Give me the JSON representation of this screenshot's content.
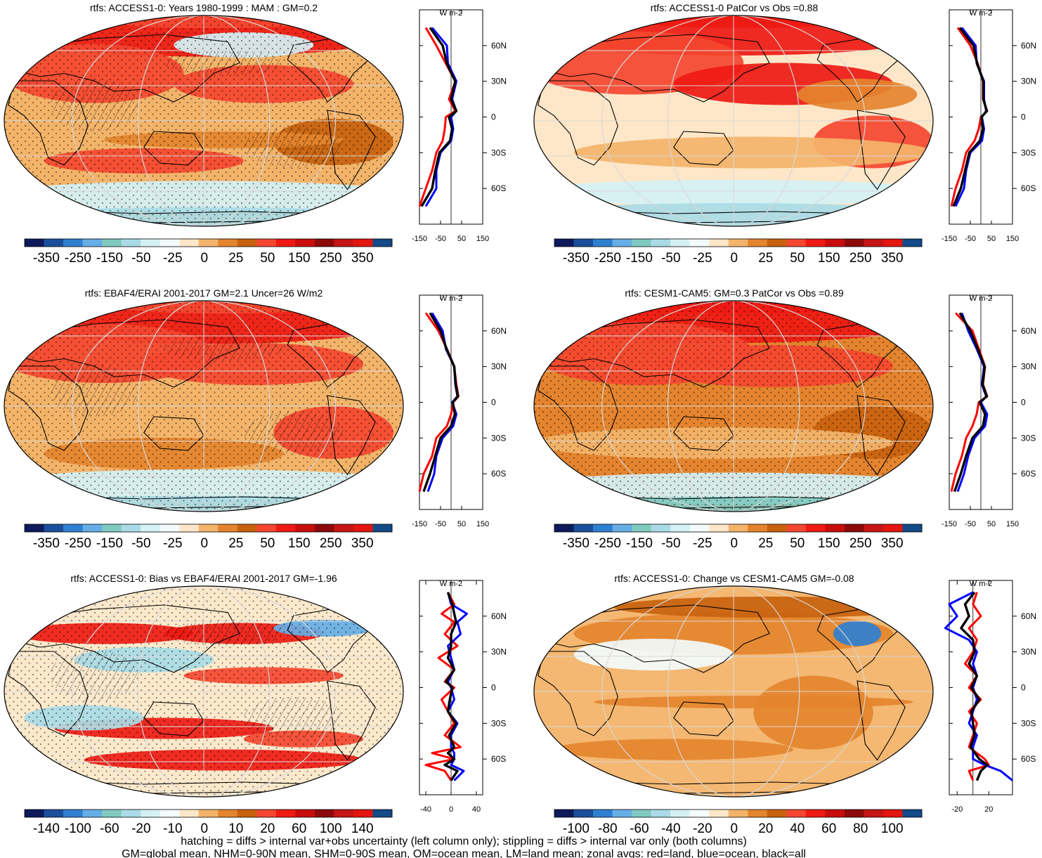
{
  "palette": [
    "#0e1a5c",
    "#1b4f9c",
    "#2f7fd0",
    "#66aee6",
    "#80c9c0",
    "#a9dbe6",
    "#d4f2f6",
    "#f3fbfd",
    "#fde7c8",
    "#f3b46a",
    "#e4842e",
    "#c8620e",
    "#f54730",
    "#ee1a13",
    "#c80d0d",
    "#8c0a0a",
    "#c61515",
    "#e2160f",
    "#134a87"
  ],
  "colors": {
    "land_zonal": "#ff0000",
    "ocean_zonal": "#0000ff",
    "all_zonal": "#000000",
    "coast": "#000000"
  },
  "footer": {
    "line1": "hatching = diffs > internal var+obs uncertainty (left column only); stippling = diffs > internal var only (both columns)",
    "line2": "GM=global mean, NHM=0-90N mean, SHM=0-90S mean, OM=ocean mean, LM=land mean; zonal avgs: red=land, blue=ocean, black=all"
  },
  "chart_data": [
    {
      "type": "heatmap",
      "title": "rtfs: ACCESS1-0: Years 1980-1999 : MAM : GM=0.2",
      "colorbar_labels": [
        "-350",
        "-250",
        "-150",
        "-50",
        "-25",
        "0",
        "25",
        "50",
        "150",
        "250",
        "350"
      ],
      "zonal": {
        "units": "W m-2",
        "xlim": [
          -150,
          150
        ],
        "xticks": [
          "-150",
          "-50",
          "50",
          "150"
        ],
        "ylim": [
          -90,
          90
        ],
        "yticks": [
          "60N",
          "30N",
          "0",
          "30S",
          "60S"
        ],
        "series": [
          {
            "key": "land",
            "lat": [
              75,
              60,
              45,
              30,
              15,
              5,
              0,
              -10,
              -20,
              -30,
              -45,
              -60,
              -75
            ],
            "values": [
              -120,
              -70,
              -25,
              20,
              -10,
              20,
              -25,
              -30,
              -40,
              -70,
              -90,
              -120,
              -150
            ]
          },
          {
            "key": "ocean",
            "lat": [
              75,
              60,
              45,
              30,
              15,
              5,
              0,
              -10,
              -20,
              -30,
              -45,
              -60,
              -75
            ],
            "values": [
              -90,
              -20,
              -15,
              25,
              5,
              25,
              0,
              10,
              0,
              -50,
              -70,
              -70,
              -120
            ]
          },
          {
            "key": "all",
            "lat": [
              75,
              60,
              45,
              30,
              15,
              5,
              0,
              -10,
              -20,
              -30,
              -45,
              -60,
              -75
            ],
            "values": [
              -100,
              -40,
              -20,
              20,
              0,
              25,
              -10,
              5,
              -5,
              -55,
              -75,
              -90,
              -140
            ]
          }
        ]
      }
    },
    {
      "type": "heatmap",
      "title": "rtfs: ACCESS1-0 PatCor vs Obs =0.88",
      "colorbar_labels": [
        "-350",
        "-250",
        "-150",
        "-50",
        "-25",
        "0",
        "25",
        "50",
        "150",
        "250",
        "350"
      ],
      "zonal": {
        "units": "W m-2",
        "xlim": [
          -150,
          150
        ],
        "xticks": [
          "-150",
          "-50",
          "50",
          "150"
        ],
        "ylim": [
          -90,
          90
        ],
        "yticks": [
          "60N",
          "30N",
          "0",
          "30S",
          "60S"
        ],
        "series": [
          {
            "key": "land",
            "lat": [
              75,
              60,
              45,
              30,
              15,
              5,
              0,
              -10,
              -20,
              -30,
              -45,
              -60,
              -75
            ],
            "values": [
              -110,
              -50,
              -15,
              10,
              10,
              30,
              0,
              -10,
              -30,
              -70,
              -90,
              -120,
              -140
            ]
          },
          {
            "key": "ocean",
            "lat": [
              75,
              60,
              45,
              30,
              15,
              5,
              0,
              -10,
              -20,
              -30,
              -45,
              -60,
              -75
            ],
            "values": [
              -90,
              -25,
              -20,
              15,
              15,
              25,
              5,
              15,
              5,
              -50,
              -70,
              -80,
              -120
            ]
          },
          {
            "key": "all",
            "lat": [
              75,
              60,
              45,
              30,
              15,
              5,
              0,
              -10,
              -20,
              -30,
              -45,
              -60,
              -75
            ],
            "values": [
              -100,
              -35,
              -18,
              12,
              12,
              28,
              3,
              10,
              -5,
              -55,
              -75,
              -95,
              -130
            ]
          }
        ]
      }
    },
    {
      "type": "heatmap",
      "title": "rtfs: EBAF4/ERAI 2001-2017 GM=2.1 Uncer=26 W/m2",
      "colorbar_labels": [
        "-350",
        "-250",
        "-150",
        "-50",
        "-25",
        "0",
        "25",
        "50",
        "150",
        "250",
        "350"
      ],
      "zonal": {
        "units": "W m-2",
        "xlim": [
          -150,
          150
        ],
        "xticks": [
          "-150",
          "-50",
          "50",
          "150"
        ],
        "ylim": [
          -90,
          90
        ],
        "yticks": [
          "60N",
          "30N",
          "0",
          "30S",
          "60S"
        ],
        "series": [
          {
            "key": "land",
            "lat": [
              75,
              60,
              45,
              30,
              15,
              5,
              0,
              -10,
              -20,
              -30,
              -45,
              -60,
              -75
            ],
            "values": [
              -120,
              -60,
              -20,
              15,
              25,
              35,
              10,
              0,
              -20,
              -70,
              -90,
              -130,
              -150
            ]
          },
          {
            "key": "ocean",
            "lat": [
              75,
              60,
              45,
              30,
              15,
              5,
              0,
              -10,
              -20,
              -30,
              -45,
              -60,
              -75
            ],
            "values": [
              -90,
              -40,
              -25,
              15,
              20,
              30,
              5,
              25,
              10,
              -40,
              -70,
              -80,
              -110
            ]
          },
          {
            "key": "all",
            "lat": [
              75,
              60,
              45,
              30,
              15,
              5,
              0,
              -10,
              -20,
              -30,
              -45,
              -60,
              -75
            ],
            "values": [
              -100,
              -50,
              -22,
              15,
              22,
              32,
              8,
              18,
              0,
              -50,
              -75,
              -100,
              -130
            ]
          }
        ]
      }
    },
    {
      "type": "heatmap",
      "title": "rtfs: CESM1-CAM5: GM=0.3 PatCor vs Obs =0.89",
      "colorbar_labels": [
        "-350",
        "-250",
        "-150",
        "-50",
        "-25",
        "0",
        "25",
        "50",
        "150",
        "250",
        "350"
      ],
      "zonal": {
        "units": "W m-2",
        "xlim": [
          -150,
          150
        ],
        "xticks": [
          "-150",
          "-50",
          "50",
          "150"
        ],
        "ylim": [
          -90,
          90
        ],
        "yticks": [
          "60N",
          "30N",
          "0",
          "30S",
          "60S"
        ],
        "series": [
          {
            "key": "land",
            "lat": [
              75,
              60,
              45,
              30,
              15,
              5,
              0,
              -10,
              -20,
              -30,
              -45,
              -60,
              -75
            ],
            "values": [
              -120,
              -40,
              -10,
              20,
              10,
              30,
              -10,
              -20,
              -40,
              -70,
              -90,
              -120,
              -140
            ]
          },
          {
            "key": "ocean",
            "lat": [
              75,
              60,
              45,
              30,
              15,
              5,
              0,
              -10,
              -20,
              -30,
              -45,
              -60,
              -75
            ],
            "values": [
              -90,
              -60,
              -20,
              15,
              5,
              25,
              0,
              30,
              20,
              -30,
              -60,
              -80,
              -110
            ]
          },
          {
            "key": "all",
            "lat": [
              75,
              60,
              45,
              30,
              15,
              5,
              0,
              -10,
              -20,
              -30,
              -45,
              -60,
              -75
            ],
            "values": [
              -100,
              -50,
              -15,
              18,
              8,
              28,
              -5,
              20,
              10,
              -40,
              -70,
              -95,
              -125
            ]
          }
        ]
      }
    },
    {
      "type": "heatmap",
      "title": "rtfs: ACCESS1-0: Bias vs EBAF4/ERAI 2001-2017 GM=-1.96",
      "colorbar_labels": [
        "-140",
        "-100",
        "-60",
        "-20",
        "-10",
        "0",
        "10",
        "20",
        "60",
        "100",
        "140"
      ],
      "zonal": {
        "units": "W m-2",
        "xlim": [
          -50,
          50
        ],
        "xticks": [
          "-40",
          "0",
          "40"
        ],
        "ylim": [
          -90,
          90
        ],
        "yticks": [
          "60N",
          "30N",
          "0",
          "30S",
          "60S"
        ],
        "series": [
          {
            "key": "land",
            "lat": [
              80,
              70,
              62,
              55,
              45,
              35,
              25,
              15,
              5,
              0,
              -10,
              -20,
              -30,
              -40,
              -50,
              -55,
              -60,
              -65,
              -70,
              -78
            ],
            "values": [
              -5,
              5,
              -15,
              5,
              -10,
              10,
              -20,
              5,
              -10,
              5,
              -15,
              -5,
              5,
              -10,
              15,
              -30,
              5,
              -40,
              -10,
              0
            ]
          },
          {
            "key": "ocean",
            "lat": [
              80,
              70,
              62,
              55,
              45,
              35,
              25,
              15,
              5,
              0,
              -10,
              -20,
              -30,
              -40,
              -50,
              -55,
              -60,
              -65,
              -70,
              -78
            ],
            "values": [
              -5,
              0,
              25,
              10,
              15,
              -5,
              0,
              5,
              -5,
              0,
              5,
              -5,
              10,
              0,
              0,
              5,
              5,
              0,
              20,
              5
            ]
          },
          {
            "key": "all",
            "lat": [
              80,
              70,
              62,
              55,
              45,
              35,
              25,
              15,
              5,
              0,
              -10,
              -20,
              -30,
              -40,
              -50,
              -55,
              -60,
              -65,
              -70,
              -78
            ],
            "values": [
              -5,
              2,
              5,
              8,
              0,
              0,
              -5,
              5,
              -8,
              2,
              -2,
              -5,
              8,
              -3,
              5,
              -5,
              5,
              -10,
              10,
              0
            ]
          }
        ]
      }
    },
    {
      "type": "heatmap",
      "title": "rtfs: ACCESS1-0: Change vs CESM1-CAM5 GM=-0.08",
      "colorbar_labels": [
        "-100",
        "-80",
        "-60",
        "-40",
        "-20",
        "0",
        "20",
        "40",
        "60",
        "80",
        "100"
      ],
      "zonal": {
        "units": "W m-2",
        "xlim": [
          -30,
          50
        ],
        "xticks": [
          "-20",
          "20"
        ],
        "ylim": [
          -90,
          90
        ],
        "yticks": [
          "60N",
          "30N",
          "0",
          "30S",
          "60S"
        ],
        "series": [
          {
            "key": "land",
            "lat": [
              80,
              70,
              60,
              50,
              40,
              30,
              20,
              10,
              0,
              -10,
              -20,
              -30,
              -40,
              -50,
              -60,
              -65,
              -70,
              -78
            ],
            "values": [
              5,
              0,
              10,
              -5,
              5,
              0,
              -10,
              5,
              -5,
              10,
              -5,
              5,
              0,
              -5,
              15,
              20,
              -5,
              0
            ]
          },
          {
            "key": "ocean",
            "lat": [
              80,
              70,
              60,
              50,
              40,
              30,
              20,
              10,
              0,
              -10,
              -20,
              -30,
              -40,
              -50,
              -60,
              -65,
              -70,
              -78
            ],
            "values": [
              0,
              -30,
              -20,
              -35,
              -5,
              5,
              0,
              5,
              0,
              5,
              0,
              -5,
              5,
              0,
              0,
              15,
              35,
              50
            ]
          },
          {
            "key": "all",
            "lat": [
              80,
              70,
              60,
              50,
              40,
              30,
              20,
              10,
              0,
              -10,
              -20,
              -30,
              -40,
              -50,
              -60,
              -65,
              -70,
              -78
            ],
            "values": [
              2,
              -10,
              -5,
              -15,
              0,
              2,
              -5,
              5,
              -2,
              8,
              -2,
              0,
              2,
              -3,
              8,
              18,
              10,
              5
            ]
          }
        ]
      }
    }
  ]
}
